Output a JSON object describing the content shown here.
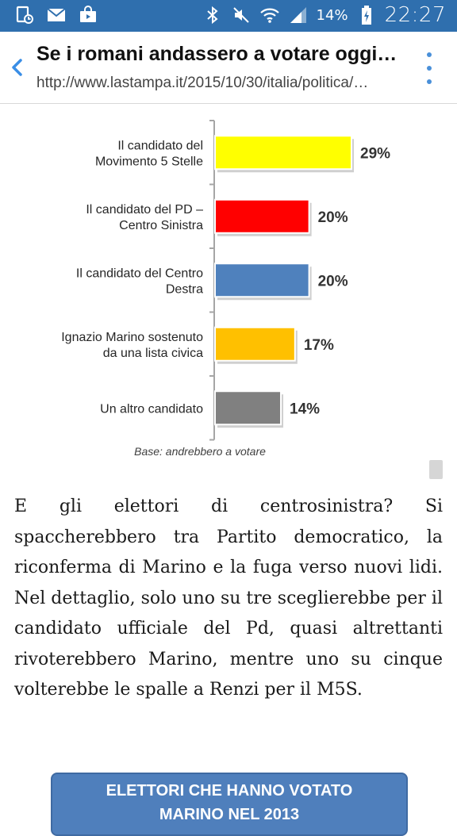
{
  "status_bar": {
    "battery": "14%",
    "time": "22:27",
    "left_icons": [
      "gallery-notification-icon",
      "mail-icon",
      "shopping-bag-icon"
    ],
    "right_icons": [
      "bluetooth-icon",
      "mute-icon",
      "wifi-icon",
      "signal-icon",
      "battery-charging-icon"
    ]
  },
  "browser": {
    "title": "Se i romani andassero a votare oggi…",
    "url": "http://www.lastampa.it/2015/10/30/italia/politica/…",
    "back_icon": "chevron-left-icon",
    "menu_icon": "overflow-menu-icon"
  },
  "chart_data": {
    "type": "bar",
    "orientation": "horizontal",
    "categories": [
      [
        "Il candidato del",
        "Movimento 5 Stelle"
      ],
      [
        "Il candidato del PD –",
        "Centro Sinistra"
      ],
      [
        "Il candidato del Centro",
        "Destra"
      ],
      [
        "Ignazio Marino sostenuto",
        "da una lista civica"
      ],
      [
        "Un altro candidato"
      ]
    ],
    "values": [
      29,
      20,
      20,
      17,
      14
    ],
    "value_labels": [
      "29%",
      "20%",
      "20%",
      "17%",
      "14%"
    ],
    "colors": [
      "#ffff00",
      "#ff0000",
      "#4f81bd",
      "#ffc000",
      "#808080"
    ],
    "xlim": [
      0,
      29
    ],
    "footnote": "Base: andrebbero a votare",
    "grid": false
  },
  "article": {
    "paragraph": "E gli elettori di centrosinistra? Si spaccherebbero tra Partito democratico, la riconferma di Marino e la fuga verso nuovi lidi. Nel dettaglio, solo uno su tre sceglierebbe per il candidato ufficiale del Pd, quasi altrettanti rivoterebbero Marino, mentre uno su cinque volterebbe le spalle a Renzi per il M5S."
  },
  "banner": {
    "line1": "ELETTORI CHE HANNO VOTATO",
    "line2": "MARINO NEL 2013"
  }
}
